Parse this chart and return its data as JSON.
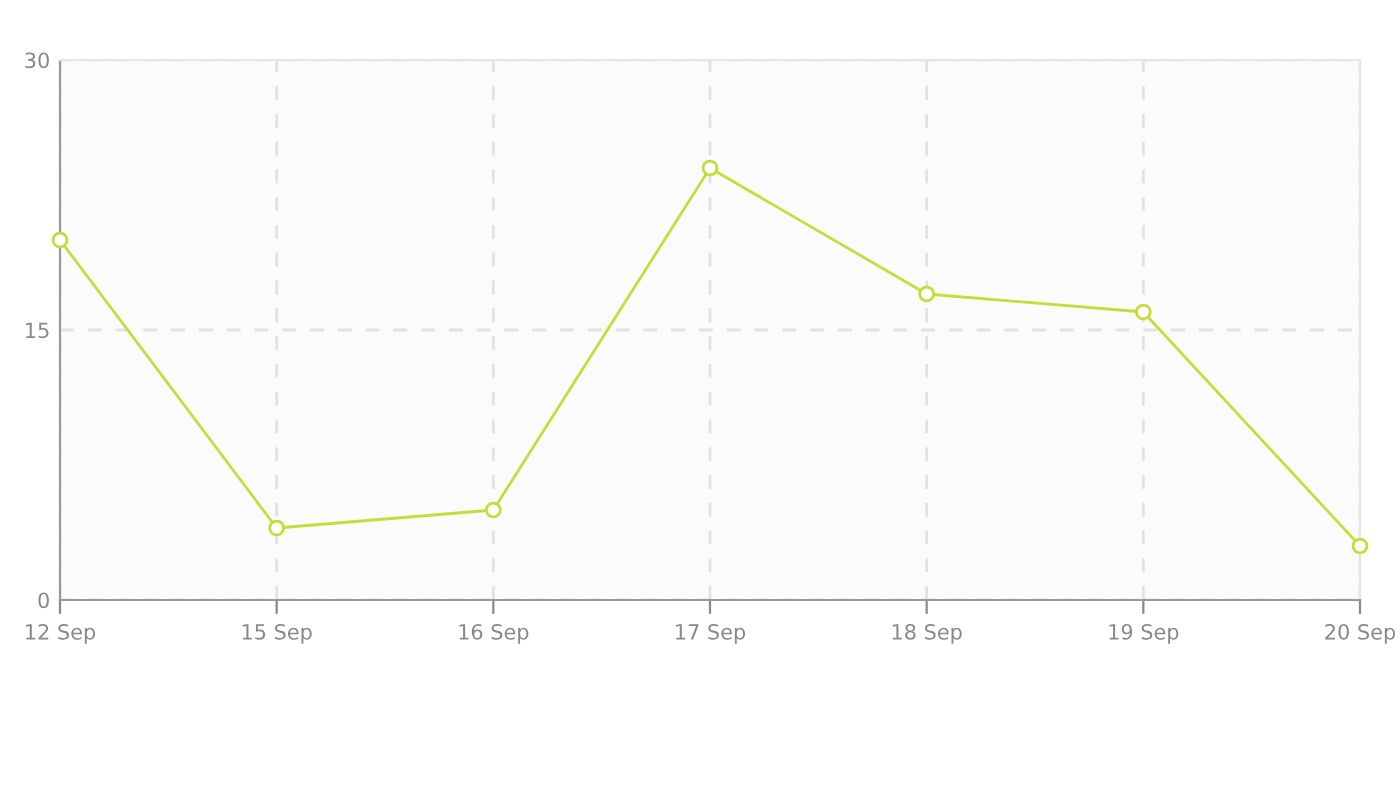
{
  "chart_data": {
    "type": "line",
    "categories": [
      "12 Sep",
      "15 Sep",
      "16 Sep",
      "17 Sep",
      "18 Sep",
      "19 Sep",
      "20 Sep"
    ],
    "series": [
      {
        "color": "#c5dc3a",
        "values": [
          20,
          4,
          5,
          24,
          17,
          16,
          3
        ]
      }
    ],
    "ylim": [
      0,
      30
    ],
    "yticks": [
      0,
      15,
      30
    ],
    "grid": true,
    "marker": "circle",
    "line_style": "solid",
    "legend": false
  }
}
